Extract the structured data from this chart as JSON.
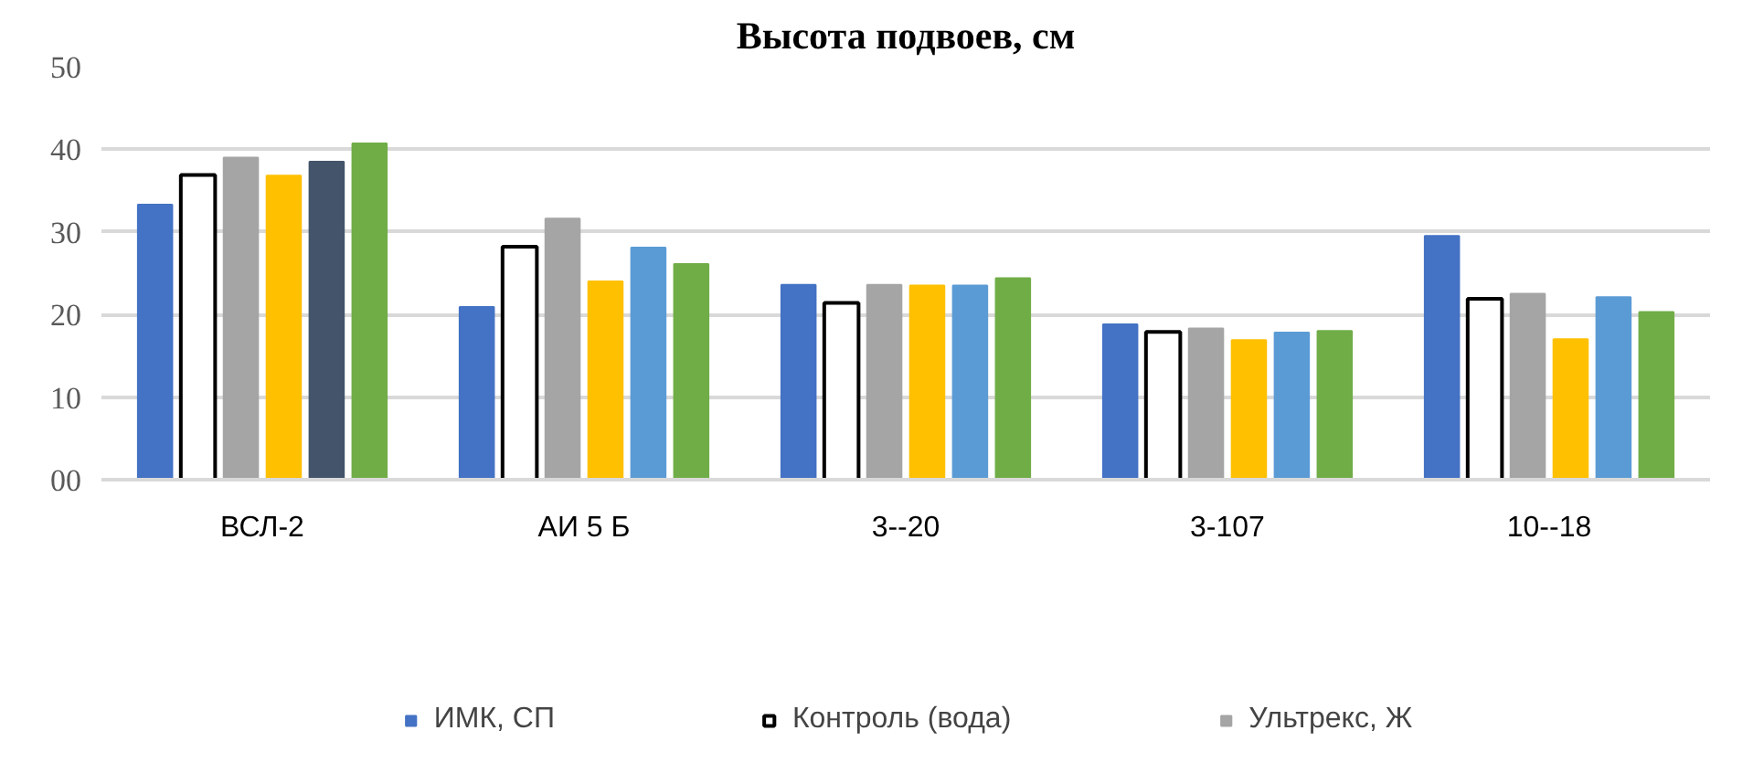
{
  "chart_data": {
    "type": "bar",
    "title": "Высота подвоев, см",
    "categories": [
      "ВСЛ-2",
      "АИ 5 Б",
      "3--20",
      "3-107",
      "10--18"
    ],
    "series": [
      {
        "name": "ИМК, СП",
        "color": "#4472c4",
        "values": [
          33.3,
          20.9,
          23.6,
          18.8,
          29.5
        ]
      },
      {
        "name": "Контроль (вода)",
        "color": "#ffffff",
        "values": [
          36.9,
          28.2,
          21.4,
          17.9,
          21.9
        ]
      },
      {
        "name": "Ультрекс, Ж",
        "color": "#a5a5a5",
        "values": [
          39,
          31.6,
          23.6,
          18.3,
          22.5
        ]
      },
      {
        "color": "#ffc000",
        "values": [
          36.8,
          24,
          23.5,
          16.9,
          17
        ]
      },
      {
        "colors": [
          "#44546a",
          "#5b9bd5",
          "#5b9bd5",
          "#5b9bd5",
          "#5b9bd5"
        ],
        "values": [
          38.5,
          28.1,
          23.5,
          17.8,
          22.1
        ]
      },
      {
        "color": "#70ad47",
        "values": [
          40.7,
          26.1,
          24.4,
          18,
          20.3
        ]
      }
    ],
    "ylim": [
      0,
      50
    ],
    "yticks": [
      {
        "value": 0,
        "label": "00"
      },
      10,
      20,
      30,
      40,
      50
    ],
    "grid": "y",
    "legend": "bottom"
  }
}
